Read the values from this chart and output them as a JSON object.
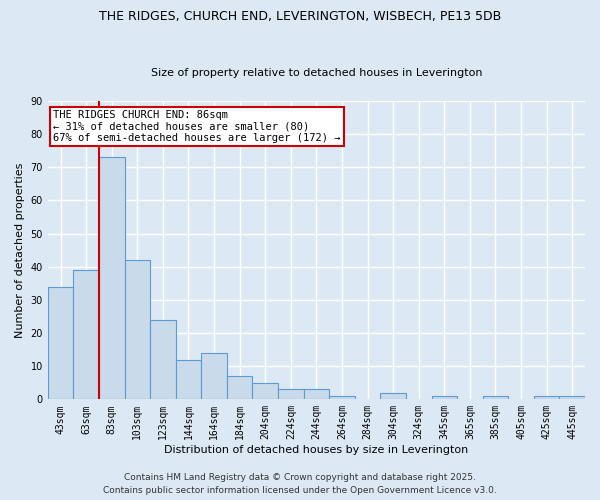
{
  "title_line1": "THE RIDGES, CHURCH END, LEVERINGTON, WISBECH, PE13 5DB",
  "title_line2": "Size of property relative to detached houses in Leverington",
  "xlabel": "Distribution of detached houses by size in Leverington",
  "ylabel": "Number of detached properties",
  "categories": [
    "43sqm",
    "63sqm",
    "83sqm",
    "103sqm",
    "123sqm",
    "144sqm",
    "164sqm",
    "184sqm",
    "204sqm",
    "224sqm",
    "244sqm",
    "264sqm",
    "284sqm",
    "304sqm",
    "324sqm",
    "345sqm",
    "365sqm",
    "385sqm",
    "405sqm",
    "425sqm",
    "445sqm"
  ],
  "values": [
    34,
    39,
    73,
    42,
    24,
    12,
    14,
    7,
    5,
    3,
    3,
    1,
    0,
    2,
    0,
    1,
    0,
    1,
    0,
    1,
    1
  ],
  "bar_color": "#c9daea",
  "bar_edge_color": "#5b9bd5",
  "background_color": "#dce9f5",
  "plot_bg_color": "#dce9f5",
  "grid_color": "#ffffff",
  "ylim": [
    0,
    90
  ],
  "yticks": [
    0,
    10,
    20,
    30,
    40,
    50,
    60,
    70,
    80,
    90
  ],
  "annotation_text": "THE RIDGES CHURCH END: 86sqm\n← 31% of detached houses are smaller (80)\n67% of semi-detached houses are larger (172) →",
  "red_line_bar_index": 2,
  "annotation_box_color": "#ffffff",
  "annotation_box_edge_color": "#cc0000",
  "footer_line1": "Contains HM Land Registry data © Crown copyright and database right 2025.",
  "footer_line2": "Contains public sector information licensed under the Open Government Licence v3.0.",
  "title_fontsize": 9,
  "subtitle_fontsize": 8,
  "tick_fontsize": 7,
  "axis_label_fontsize": 8,
  "annotation_fontsize": 7.5,
  "footer_fontsize": 6.5
}
